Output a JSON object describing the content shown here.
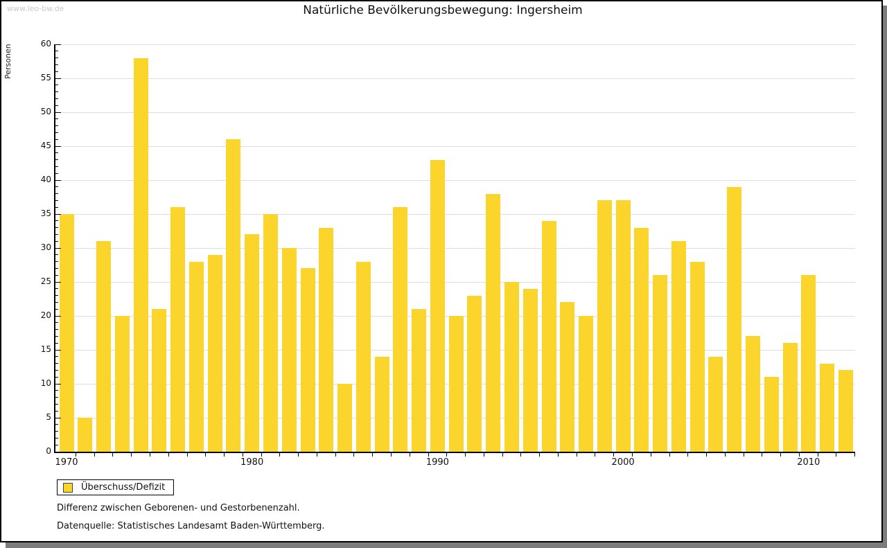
{
  "page": {
    "watermark": "www.leo-bw.de",
    "title": "Natürliche Bevölkerungsbewegung: Ingersheim"
  },
  "chart_data": {
    "type": "bar",
    "title": "Natürliche Bevölkerungsbewegung: Ingersheim",
    "ylabel": "Personen",
    "ylim": [
      0,
      60
    ],
    "ytick_labeled_step": 5,
    "ytick_minor_step": 1,
    "grid": true,
    "bar_color": "#FBD52B",
    "categories": [
      1970,
      1971,
      1972,
      1973,
      1974,
      1975,
      1976,
      1977,
      1978,
      1979,
      1980,
      1981,
      1982,
      1983,
      1984,
      1985,
      1986,
      1987,
      1988,
      1989,
      1990,
      1991,
      1992,
      1993,
      1994,
      1995,
      1996,
      1997,
      1998,
      1999,
      2000,
      2001,
      2002,
      2003,
      2004,
      2005,
      2006,
      2007,
      2008,
      2009,
      2010,
      2011,
      2012
    ],
    "values": [
      35,
      5,
      31,
      20,
      58,
      21,
      36,
      28,
      29,
      46,
      32,
      35,
      30,
      27,
      33,
      10,
      28,
      14,
      36,
      21,
      43,
      20,
      23,
      38,
      25,
      24,
      34,
      22,
      20,
      37,
      37,
      33,
      26,
      31,
      28,
      14,
      39,
      17,
      11,
      16,
      26,
      13,
      12
    ],
    "x_major_ticks": [
      1970,
      1980,
      1990,
      2000,
      2010
    ],
    "legend": {
      "position": "bottom-left",
      "label": "Überschuss/Defizit"
    }
  },
  "footer": {
    "line1": "Differenz zwischen Geborenen- und Gestorbenenzahl.",
    "line2": "Datenquelle: Statistisches Landesamt Baden-Württemberg."
  },
  "colors": {
    "bar": "#FBD52B",
    "gridline": "#DDDDDD",
    "axis": "#000000",
    "watermark": "#C9C9C9",
    "shadow": "#7D7D7D"
  }
}
